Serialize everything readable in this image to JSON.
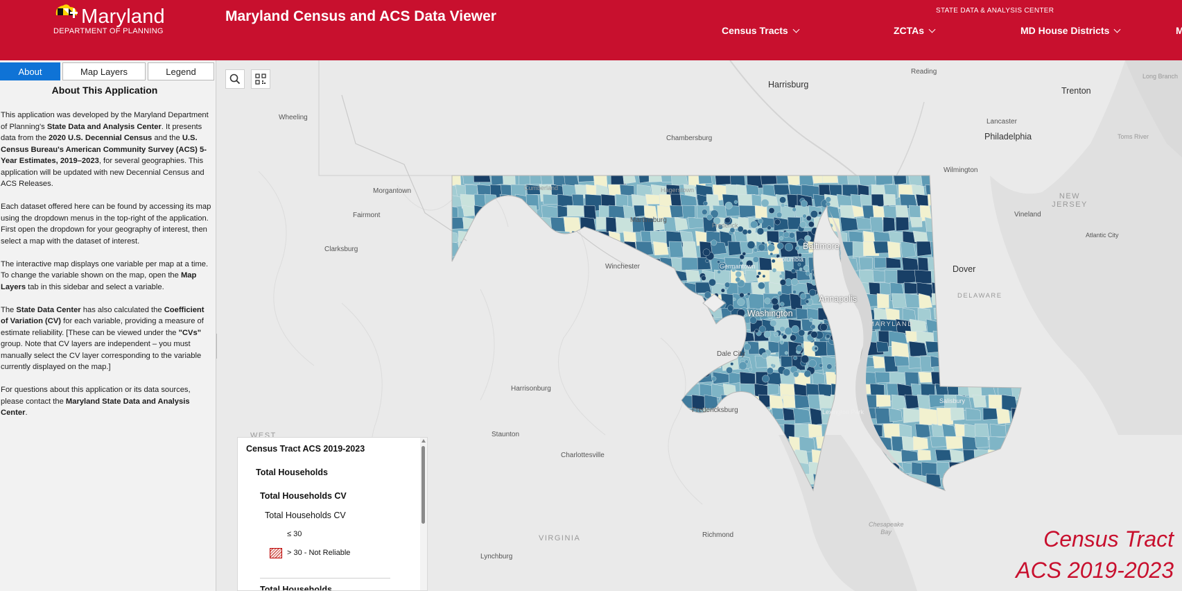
{
  "header": {
    "logo_text": "Maryland",
    "logo_subtext": "DEPARTMENT OF PLANNING",
    "app_title": "Maryland Census and ACS Data Viewer",
    "sdac_label": "STATE DATA & ANALYSIS CENTER",
    "nav": [
      {
        "label": "Census Tracts"
      },
      {
        "label": "ZCTAs"
      },
      {
        "label": "MD House Districts"
      },
      {
        "label": "M"
      }
    ],
    "brand_color": "#c8102e"
  },
  "sidebar": {
    "tabs": [
      {
        "label": "About",
        "active": true
      },
      {
        "label": "Map Layers",
        "active": false
      },
      {
        "label": "Legend",
        "active": false
      }
    ],
    "about_title": "About This Application",
    "p1": {
      "a": "This application was developed by the Maryland Department of Planning's ",
      "b": "State Data and Analysis Center",
      "c": ". It presents data from the ",
      "d": "2020 U.S. Decennial Census",
      "e": " and the ",
      "f": "U.S. Census Bureau's American Community Survey (ACS) 5-Year Estimates, 2019–2023",
      "g": ", for several geographies. This application will be updated with new Decennial Census and ACS Releases."
    },
    "p2": "Each dataset offered here can be found by accessing its map using the dropdown menus in the top-right of the application. First open the dropdown for your geography of interest, then select a map with the dataset of interest.",
    "p3": {
      "a": "The interactive map displays one variable per map at a time. To change the variable shown on the map, open the ",
      "b": "Map Layers",
      "c": " tab in this sidebar and select a variable."
    },
    "p4": {
      "a": "The ",
      "b": "State Data Center",
      "c": " has also calculated the ",
      "d": "Coefficient of Variation (CV)",
      "e": " for each variable, providing a measure of estimate reliability. [These can be viewed under the ",
      "f": "\"CVs\"",
      "g": " group. Note that CV layers are independent – you must manually select the CV layer corresponding to the variable currently displayed on the map.]"
    },
    "p5": {
      "a": "For questions about this application or its data sources, please contact the ",
      "b": "Maryland State Data and Analysis Center",
      "c": "."
    }
  },
  "map": {
    "tools": [
      {
        "icon": "search-icon"
      },
      {
        "icon": "qr-code-icon"
      }
    ],
    "places": {
      "harrisburg": "Harrisburg",
      "reading": "Reading",
      "trenton": "Trenton",
      "long_branch": "Long Branch",
      "lancaster": "Lancaster",
      "chambersburg": "Chambersburg",
      "philadelphia": "Philadelphia",
      "toms_river": "Toms River",
      "wheeling": "Wheeling",
      "wilmington": "Wilmington",
      "morgantown": "Morgantown",
      "cumberland": "Cumberland",
      "hagerstown": "Hagerstown",
      "fairmont": "Fairmont",
      "martinsburg": "Martinsburg",
      "new_jersey": "NEW JERSEY",
      "vineland": "Vineland",
      "frederick": "Frederick",
      "baltimore": "Baltimore",
      "atlantic_city": "Atlantic City",
      "clarksburg": "Clarksburg",
      "columbia": "Columbia",
      "germantown": "Germantown",
      "winchester": "Winchester",
      "dover": "Dover",
      "delaware": "DELAWARE",
      "annapolis": "Annapolis",
      "washington": "Washington",
      "maryland": "MARYLAND",
      "dale_city": "Dale City",
      "harrisonburg": "Harrisonburg",
      "fredericksburg": "Fredericksburg",
      "salisbury": "Salisbury",
      "lexington_park": "Lexington Park",
      "staunton": "Staunton",
      "west": "WEST",
      "charlottesville": "Charlottesville",
      "virginia": "VIRGINIA",
      "chesapeake_bay": "Chesapeake Bay",
      "richmond": "Richmond",
      "lynchburg": "Lynchburg"
    },
    "legend": {
      "layer_title": "Census Tract ACS 2019-2023",
      "group": "Total Households",
      "sublayer": "Total Households CV",
      "field": "Total Households CV",
      "class1": "≤ 30",
      "class2": "> 30 - Not Reliable",
      "next": "Total Households"
    },
    "overlay_line1": "Census Tract",
    "overlay_line2": "ACS 2019-2023",
    "choropleth_colors": [
      "#f2f1cf",
      "#c9e2dc",
      "#a3cdd3",
      "#7fb5c6",
      "#5e9bb5",
      "#3f7a9c",
      "#255a80",
      "#183f66"
    ]
  }
}
